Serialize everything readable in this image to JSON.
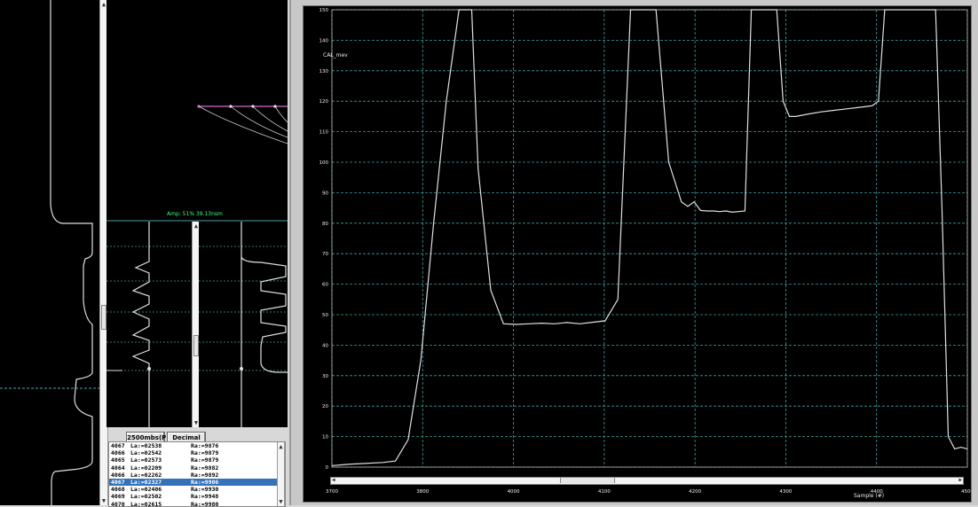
{
  "colors": {
    "trace": "#e0e0e0",
    "grid": "#3fa0a0",
    "cursor": "#5aa0b0",
    "marker_line": "#d070d0",
    "amp_text": "#40ff80",
    "selection": "#3572b8"
  },
  "left_panel": {
    "amp_label": "Amp: 51% 39.13nsm"
  },
  "bottom_controls": {
    "rate_button": "2500mbs(P)",
    "format_button": "Decimal"
  },
  "data_list": {
    "rows": [
      {
        "id": "4067",
        "a": "La:=02538",
        "b": "Ra:=9876"
      },
      {
        "id": "4066",
        "a": "La:=02542",
        "b": "Ra:=9879"
      },
      {
        "id": "4065",
        "a": "La:=02573",
        "b": "Ra:=9879"
      },
      {
        "id": "4064",
        "a": "La:=02209",
        "b": "Ra:=9882"
      },
      {
        "id": "4066",
        "a": "La:=02262",
        "b": "Ra:=9892"
      },
      {
        "id": "4067",
        "a": "La:=02327",
        "b": "Ra:=9906"
      },
      {
        "id": "4068",
        "a": "La:=02406",
        "b": "Ra:=9930"
      },
      {
        "id": "4069",
        "a": "La:=02502",
        "b": "Ra:=9948"
      },
      {
        "id": "4070",
        "a": "La:=02615",
        "b": "Ra:=9980"
      }
    ],
    "selected_index": 5
  },
  "chart_data": {
    "type": "line",
    "ylabel": "CAL_mev",
    "xlabel": "Sample (#)",
    "ylim": [
      0,
      150
    ],
    "y_ticks": [
      "150",
      "140",
      "130",
      "120",
      "110",
      "100",
      "90",
      "80",
      "70",
      "60",
      "50",
      "40",
      "30",
      "20",
      "10",
      "0"
    ],
    "x_ticks": [
      "3700",
      "3800",
      "4000",
      "4100",
      "4200",
      "4300",
      "4400",
      "4500"
    ],
    "grid": "on",
    "series": [
      {
        "x": [
          0,
          3,
          8,
          10,
          12,
          14,
          16,
          18,
          20,
          21,
          22,
          23,
          25,
          27,
          29,
          31,
          33,
          35,
          37,
          39,
          41,
          43,
          45,
          47,
          49,
          51,
          53,
          55,
          56,
          57,
          58,
          59,
          60,
          61,
          62,
          63,
          64,
          65,
          66,
          67,
          68,
          69,
          70,
          71,
          72,
          73,
          75,
          77,
          79,
          81,
          83,
          85,
          86,
          87,
          88,
          89,
          90,
          91,
          92,
          93,
          94,
          95,
          96,
          97,
          98,
          99,
          100
        ],
        "y": [
          0.5,
          1,
          1.5,
          2,
          9,
          35,
          80,
          120,
          150,
          150,
          150,
          98,
          58,
          47,
          46.8,
          47,
          47.2,
          47,
          47.4,
          47,
          47.5,
          48,
          55,
          150,
          150,
          150,
          100,
          87,
          85.5,
          87,
          84.2,
          84,
          84,
          83.8,
          84,
          83.6,
          83.8,
          84,
          150,
          150,
          150,
          150,
          150,
          120,
          115,
          115,
          115.8,
          116.5,
          117,
          117.5,
          118,
          118.5,
          120,
          150,
          150,
          150,
          150,
          150,
          150,
          150,
          150,
          150,
          85,
          10,
          6,
          6.5,
          6
        ]
      }
    ]
  }
}
